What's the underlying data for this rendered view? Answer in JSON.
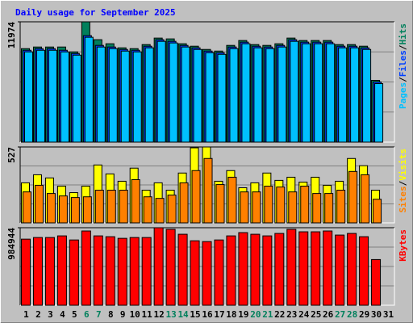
{
  "title": "Daily usage for September 2025",
  "separator": "/",
  "chart_data": [
    {
      "type": "bar",
      "categories": [
        "1",
        "2",
        "3",
        "4",
        "5",
        "6",
        "7",
        "8",
        "9",
        "10",
        "11",
        "12",
        "13",
        "14",
        "15",
        "16",
        "17",
        "18",
        "19",
        "20",
        "21",
        "22",
        "23",
        "24",
        "25",
        "26",
        "27",
        "28",
        "29",
        "30",
        "31"
      ],
      "category_colors": [
        "#000000",
        "#000000",
        "#000000",
        "#000000",
        "#000000",
        "#00805c",
        "#00805c",
        "#000000",
        "#000000",
        "#000000",
        "#000000",
        "#000000",
        "#00805c",
        "#00805c",
        "#000000",
        "#000000",
        "#000000",
        "#000000",
        "#000000",
        "#00805c",
        "#00805c",
        "#000000",
        "#000000",
        "#000000",
        "#000000",
        "#000000",
        "#00805c",
        "#00805c",
        "#000000",
        "#000000",
        "#000000"
      ],
      "ylim": [
        0,
        11974
      ],
      "yticks": [
        11974
      ],
      "series": [
        {
          "name": "Hits",
          "color": "#00805c",
          "values": [
            9304,
            9466,
            9466,
            9466,
            8980,
            11974,
            10193,
            9789,
            9384,
            9304,
            9708,
            10355,
            10274,
            9789,
            9546,
            9223,
            9061,
            9627,
            10113,
            9708,
            9627,
            9789,
            10355,
            10113,
            10113,
            10113,
            9708,
            9708,
            9546,
            6148,
            null
          ]
        },
        {
          "name": "Files",
          "color": "#0040ff",
          "values": [
            9142,
            9304,
            9304,
            9142,
            8818,
            10598,
            9627,
            9466,
            9223,
            9142,
            9546,
            10193,
            10032,
            9627,
            9384,
            9061,
            8899,
            9466,
            9951,
            9546,
            9466,
            9627,
            10193,
            9951,
            9951,
            9951,
            9546,
            9546,
            9384,
            5986,
            null
          ]
        },
        {
          "name": "Pages",
          "color": "#00c0ff",
          "values": [
            8980,
            9142,
            9142,
            8980,
            8657,
            10436,
            9466,
            9304,
            9061,
            8980,
            9384,
            10032,
            9870,
            9466,
            9223,
            8899,
            8738,
            9304,
            9789,
            9384,
            9304,
            9466,
            10032,
            9789,
            9789,
            9789,
            9384,
            9384,
            9223,
            5825,
            null
          ]
        }
      ]
    },
    {
      "type": "bar",
      "ylim": [
        0,
        527
      ],
      "yticks": [
        527
      ],
      "series": [
        {
          "name": "Visits",
          "color": "#ffff00",
          "values": [
            278,
            334,
            312,
            255,
            210,
            255,
            402,
            340,
            289,
            380,
            227,
            278,
            227,
            346,
            521,
            527,
            289,
            363,
            244,
            278,
            346,
            295,
            317,
            283,
            317,
            261,
            289,
            447,
            397,
            227,
            null
          ]
        },
        {
          "name": "Sites",
          "color": "#ff8000",
          "values": [
            215,
            261,
            204,
            187,
            176,
            181,
            227,
            227,
            227,
            300,
            181,
            170,
            193,
            278,
            363,
            447,
            266,
            317,
            215,
            215,
            255,
            249,
            215,
            255,
            204,
            204,
            227,
            357,
            334,
            164,
            null
          ]
        }
      ]
    },
    {
      "type": "bar",
      "ylim": [
        0,
        984944
      ],
      "yticks": [
        984944
      ],
      "series": [
        {
          "name": "KBytes",
          "color": "#ff0000",
          "values": [
            839808,
            860544,
            860544,
            881280,
            829440,
            943488,
            881280,
            870912,
            850176,
            860544,
            860544,
            984944,
            964224,
            902016,
            819072,
            808704,
            829440,
            881280,
            922752,
            902016,
            881280,
            912384,
            964224,
            933120,
            933120,
            943488,
            891648,
            912384,
            870912,
            580608,
            null
          ]
        }
      ]
    }
  ]
}
